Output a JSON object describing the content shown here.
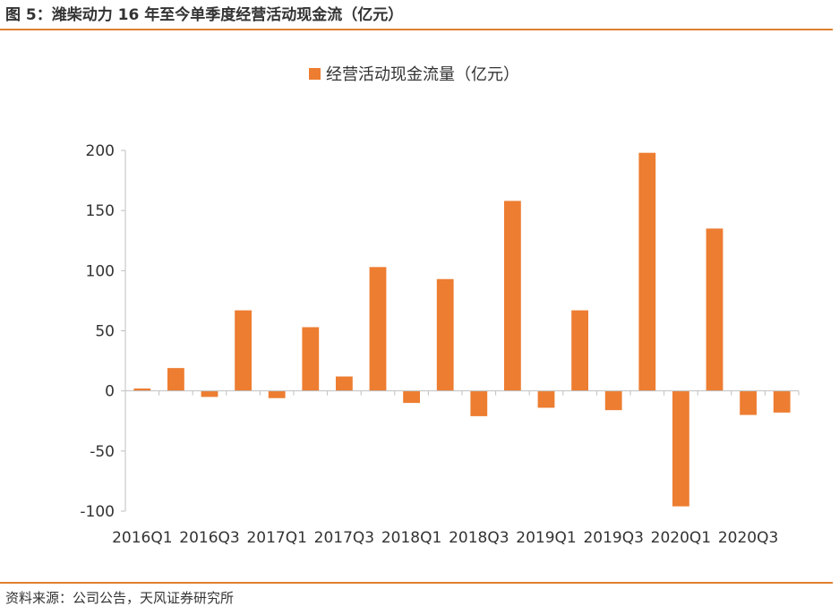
{
  "figure": {
    "title": "图 5：潍柴动力 16 年至今单季度经营活动现金流（亿元）",
    "source": "资料来源：公司公告，天风证券研究所"
  },
  "colors": {
    "bar": "#ed7d31",
    "rule": "#e07f2e",
    "axis": "#bfbfbf"
  },
  "chart_data": {
    "type": "bar",
    "title": "",
    "xlabel": "",
    "ylabel": "",
    "legend": {
      "position": "top",
      "entries": [
        "经营活动现金流量（亿元）"
      ]
    },
    "ylim": [
      -100,
      200
    ],
    "yticks": [
      200,
      150,
      100,
      50,
      0,
      -50,
      -100
    ],
    "grid": false,
    "categories": [
      "2016Q1",
      "2016Q2",
      "2016Q3",
      "2016Q4",
      "2017Q1",
      "2017Q2",
      "2017Q3",
      "2017Q4",
      "2018Q1",
      "2018Q2",
      "2018Q3",
      "2018Q4",
      "2019Q1",
      "2019Q2",
      "2019Q3",
      "2019Q4",
      "2020Q1",
      "2020Q2",
      "2020Q3",
      "2020Q4"
    ],
    "tick_labels": [
      "2016Q1",
      "2016Q3",
      "2017Q1",
      "2017Q3",
      "2018Q1",
      "2018Q3",
      "2019Q1",
      "2019Q3",
      "2020Q1",
      "2020Q3"
    ],
    "series": [
      {
        "name": "经营活动现金流量（亿元）",
        "values": [
          2,
          19,
          -5,
          67,
          -6,
          53,
          12,
          103,
          -10,
          93,
          -21,
          158,
          -14,
          67,
          -16,
          198,
          -96,
          135,
          -20,
          -18
        ]
      }
    ]
  }
}
